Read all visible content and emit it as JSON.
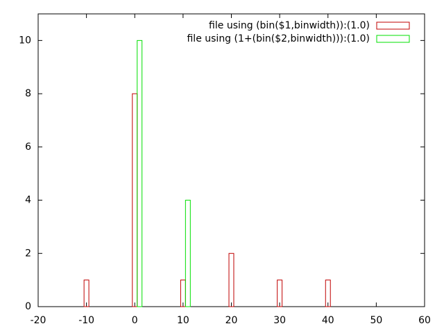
{
  "chart_data": {
    "type": "bar",
    "x": [
      -10,
      0,
      1,
      10,
      11,
      20,
      30,
      40
    ],
    "series": [
      {
        "name": "file using (bin($1,binwidth)):(1.0)",
        "color": "#c00000",
        "values": [
          1,
          8,
          null,
          1,
          null,
          2,
          1,
          1
        ]
      },
      {
        "name": "file using (1+(bin($2,binwidth))):(1.0)",
        "color": "#00e000",
        "values": [
          null,
          null,
          10,
          null,
          4,
          null,
          null,
          null
        ]
      }
    ],
    "xlim": [
      -20,
      60
    ],
    "xticks": [
      -20,
      -10,
      0,
      10,
      20,
      30,
      40,
      50,
      60
    ],
    "ylim": [
      0,
      11
    ],
    "yticks": [
      0,
      2,
      4,
      6,
      8,
      10
    ],
    "grid": false,
    "legend": "top-right"
  }
}
